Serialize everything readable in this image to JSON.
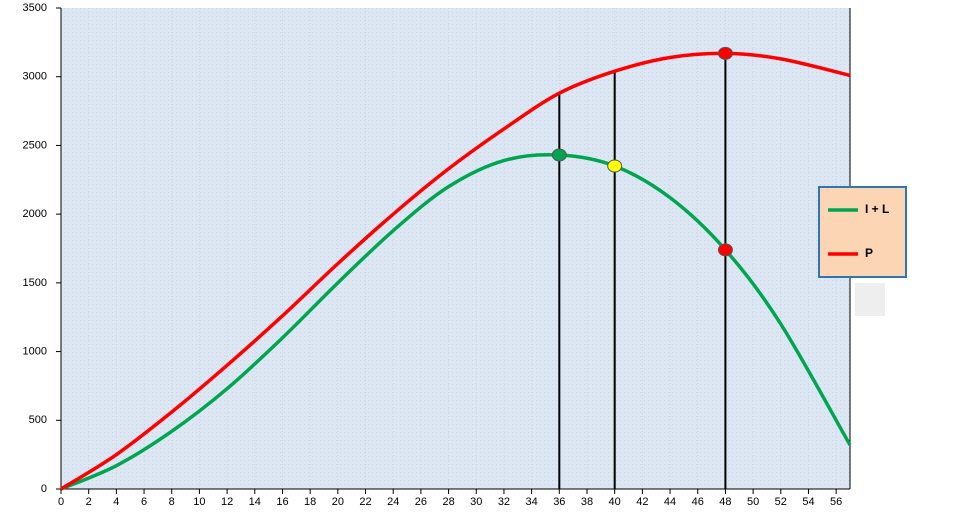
{
  "chart_data": {
    "type": "line",
    "x": [
      0,
      4,
      8,
      12,
      16,
      20,
      24,
      28,
      32,
      36,
      40,
      44,
      48,
      52,
      57
    ],
    "series": [
      {
        "name": "I + L",
        "color": "#00a550",
        "values": [
          0,
          170,
          420,
          730,
          1100,
          1500,
          1880,
          2200,
          2390,
          2430,
          2350,
          2120,
          1740,
          1200,
          320
        ]
      },
      {
        "name": "P",
        "color": "#ff0000",
        "values": [
          0,
          250,
          560,
          900,
          1260,
          1640,
          2000,
          2330,
          2620,
          2880,
          3040,
          3140,
          3170,
          3130,
          3010
        ]
      }
    ],
    "markers": [
      {
        "x": 36,
        "y": 2430,
        "color": "#00a550"
      },
      {
        "x": 40,
        "y": 2350,
        "color": "#ffff00"
      },
      {
        "x": 48,
        "y": 1740,
        "color": "#ff0000"
      },
      {
        "x": 48,
        "y": 3170,
        "color": "#ff0000"
      }
    ],
    "vlines": [
      {
        "x": 36,
        "y": 2880
      },
      {
        "x": 40,
        "y": 3040
      },
      {
        "x": 48,
        "y": 3170
      }
    ],
    "xlim": [
      0,
      57
    ],
    "ylim": [
      0,
      3500
    ],
    "xticks": [
      0,
      2,
      4,
      6,
      8,
      10,
      12,
      14,
      16,
      18,
      20,
      22,
      24,
      26,
      28,
      30,
      32,
      34,
      36,
      38,
      40,
      42,
      44,
      46,
      48,
      50,
      52,
      54,
      56
    ],
    "yticks": [
      0,
      500,
      1000,
      1500,
      2000,
      2500,
      3000,
      3500
    ],
    "grid": true,
    "legend": "right"
  }
}
